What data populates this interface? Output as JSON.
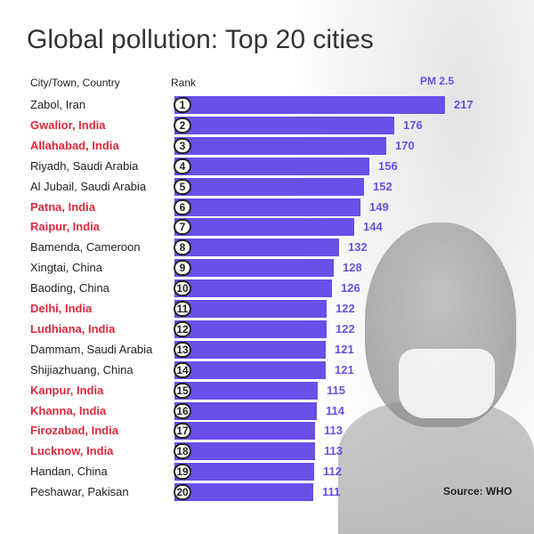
{
  "title": "Global pollution: Top 20 cities",
  "headers": {
    "city": "City/Town, Country",
    "rank": "Rank",
    "value": "PM 2.5"
  },
  "source": "Source: WHO",
  "colors": {
    "bar": "#6a4fe8",
    "india": "#e0283c",
    "other": "#222222",
    "value": "#6a4fe8"
  },
  "chart_data": {
    "type": "bar",
    "orientation": "horizontal",
    "title": "Global pollution: Top 20 cities",
    "xlabel": "PM 2.5",
    "ylabel": "City/Town, Country",
    "categories": [
      "Zabol, Iran",
      "Gwalior, India",
      "Allahabad, India",
      "Riyadh, Saudi Arabia",
      "Al Jubail, Saudi Arabia",
      "Patna, India",
      "Raipur, India",
      "Bamenda, Cameroon",
      "Xingtai, China",
      "Baoding, China",
      "Delhi, India",
      "Ludhiana, India",
      "Dammam, Saudi Arabia",
      "Shijiazhuang, China",
      "Kanpur, India",
      "Khanna, India",
      "Firozabad, India",
      "Lucknow, India",
      "Handan, China",
      "Peshawar, Pakisan"
    ],
    "ranks": [
      1,
      2,
      3,
      4,
      5,
      6,
      7,
      8,
      9,
      10,
      11,
      12,
      13,
      14,
      15,
      16,
      17,
      18,
      19,
      20
    ],
    "values": [
      217,
      176,
      170,
      156,
      152,
      149,
      144,
      132,
      128,
      126,
      122,
      122,
      121,
      121,
      115,
      114,
      113,
      113,
      112,
      111
    ],
    "highlight_india": [
      false,
      true,
      true,
      false,
      false,
      true,
      true,
      false,
      false,
      false,
      true,
      true,
      false,
      false,
      true,
      true,
      true,
      true,
      false,
      false
    ],
    "xlim": [
      0,
      217
    ],
    "grid": false,
    "legend": "none"
  }
}
